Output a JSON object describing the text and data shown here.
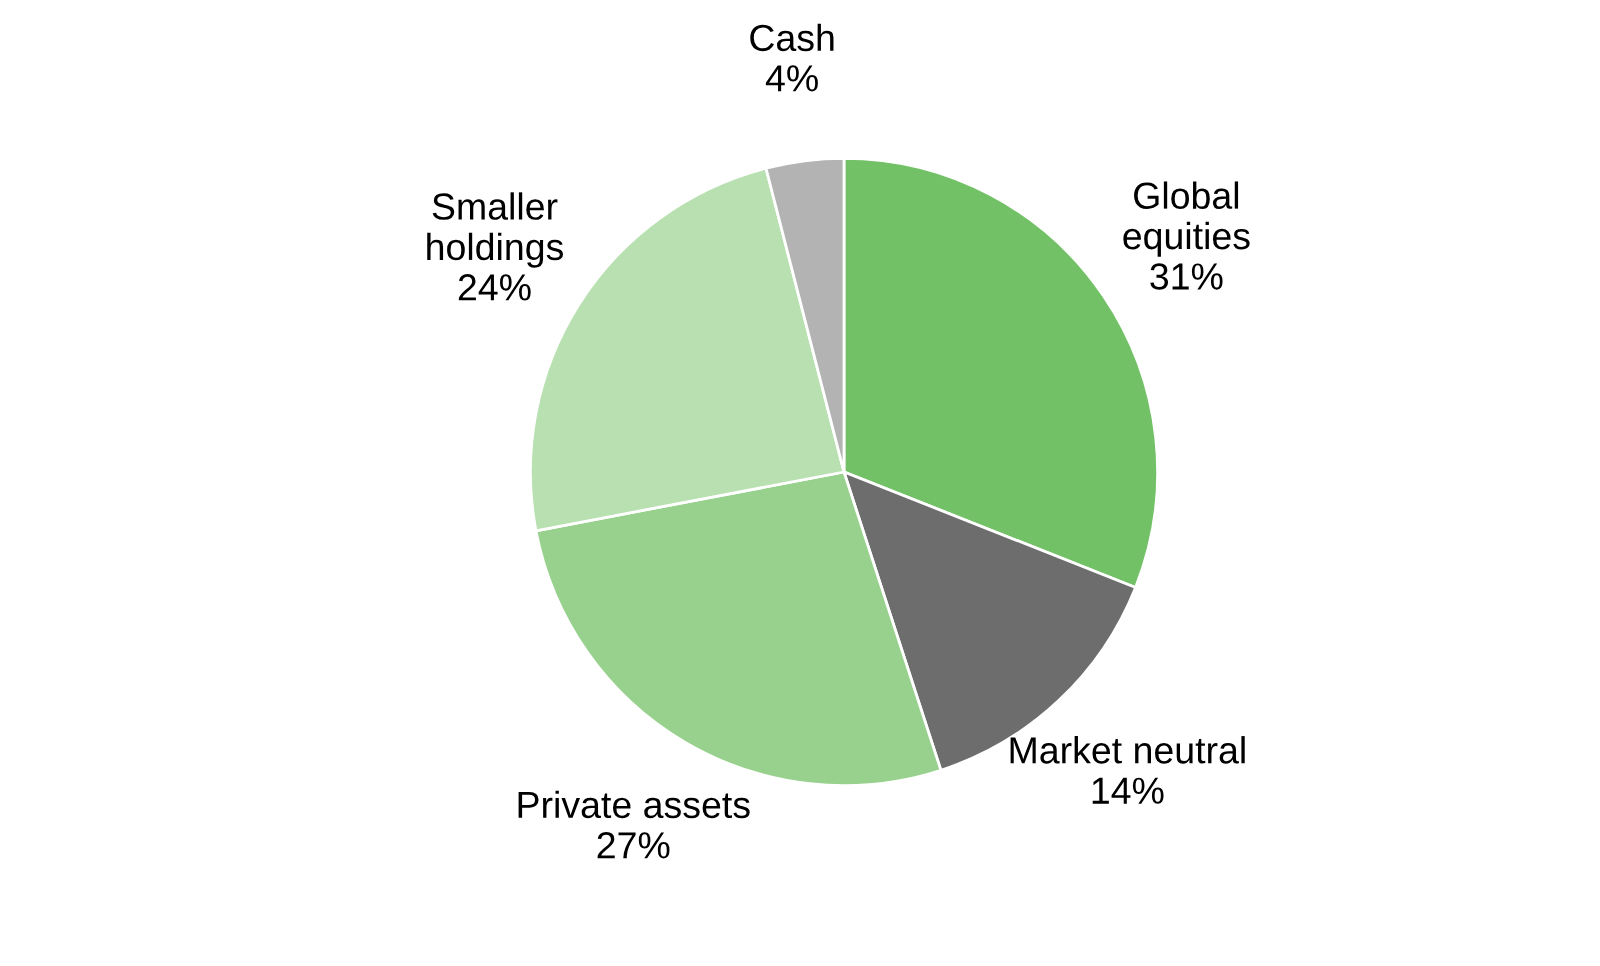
{
  "chart_data": {
    "type": "pie",
    "categories": [
      "Global\nequities",
      "Market neutral",
      "Private assets",
      "Smaller\nholdings",
      "Cash"
    ],
    "values": [
      31,
      14,
      27,
      24,
      4
    ],
    "value_labels": [
      "31%",
      "14%",
      "27%",
      "24%",
      "4%"
    ],
    "colors": [
      "#73c167",
      "#6d6d6d",
      "#98d18d",
      "#b8e0b0",
      "#b3b3b3"
    ],
    "legend": false
  }
}
